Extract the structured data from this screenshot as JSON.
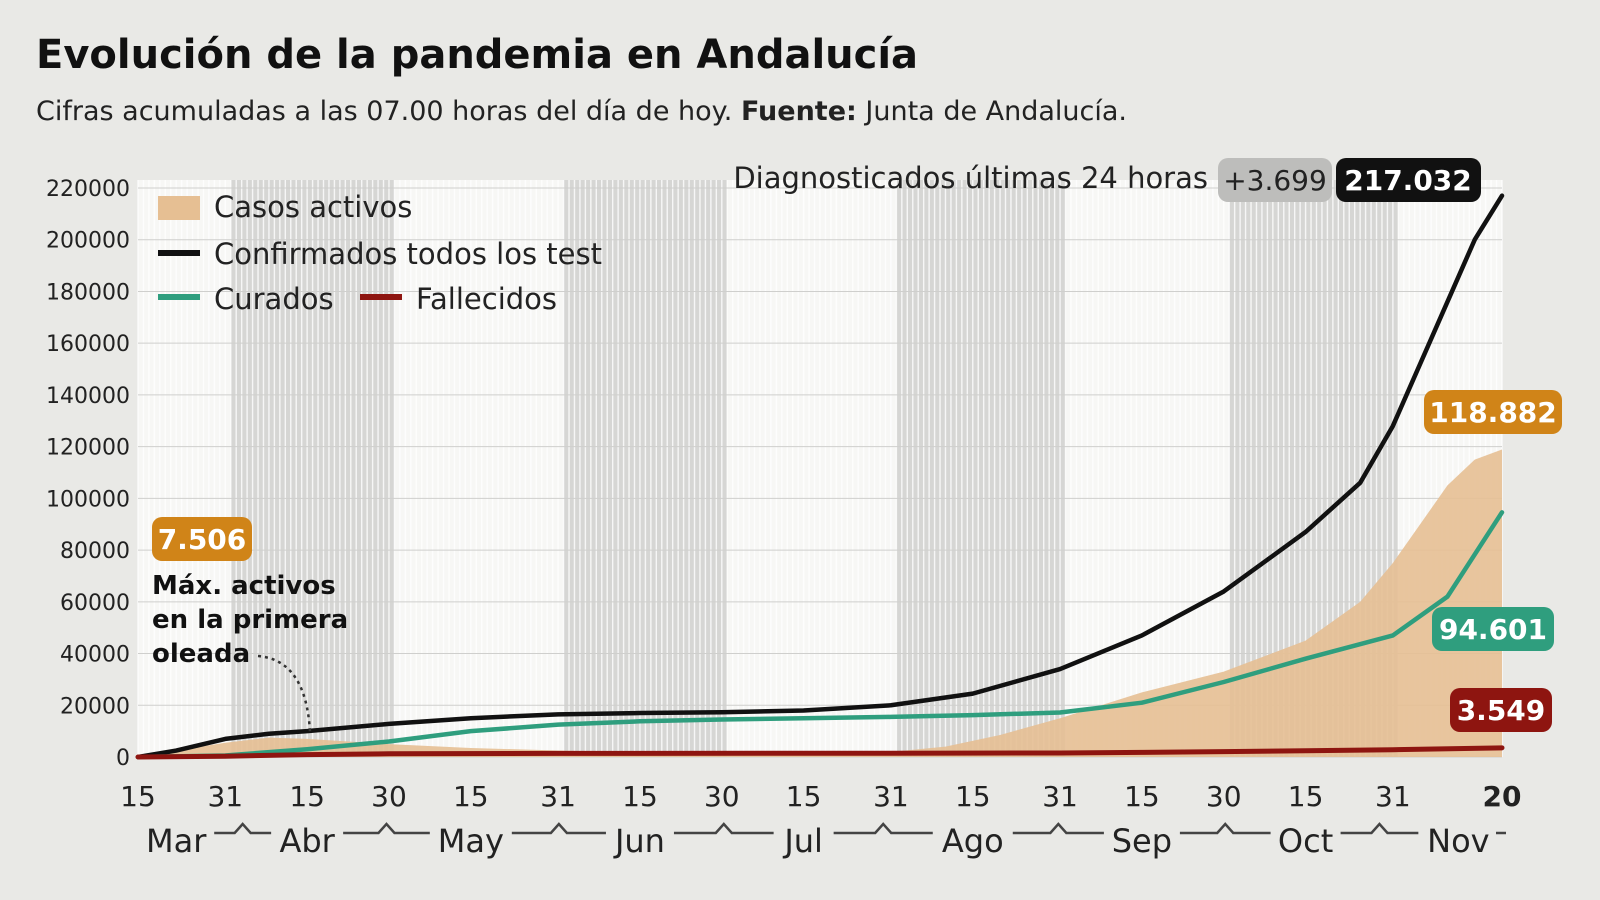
{
  "header": {
    "title": "Evolución de la pandemia en Andalucía",
    "subtitle_text": "Cifras acumuladas a las 07.00 horas del día de hoy. ",
    "subtitle_source_label": "Fuente:",
    "subtitle_source": " Junta de Andalucía."
  },
  "colors": {
    "background": "#e9e9e6",
    "casos_activos": "#e6bf93",
    "confirmados": "#111111",
    "curados": "#2f9e7e",
    "fallecidos": "#8e1510",
    "tag_activos": "#d08418",
    "tag_diag": "#bdbdbb",
    "band": "#d6d6d4"
  },
  "chart_data": {
    "type": "area+line",
    "x_unit": "date (month-day)",
    "xlim": [
      "03-15",
      "11-20"
    ],
    "ylim": [
      0,
      220000
    ],
    "y_ticks": [
      "0",
      "20000",
      "40000",
      "60000",
      "80000",
      "100000",
      "120000",
      "140000",
      "160000",
      "180000",
      "200000",
      "220000"
    ],
    "x_ticks": [
      {
        "date": "03-15",
        "label": "15"
      },
      {
        "date": "03-31",
        "label": "31"
      },
      {
        "date": "04-15",
        "label": "15"
      },
      {
        "date": "04-30",
        "label": "30"
      },
      {
        "date": "05-15",
        "label": "15"
      },
      {
        "date": "05-31",
        "label": "31"
      },
      {
        "date": "06-15",
        "label": "15"
      },
      {
        "date": "06-30",
        "label": "30"
      },
      {
        "date": "07-15",
        "label": "15"
      },
      {
        "date": "07-31",
        "label": "31"
      },
      {
        "date": "08-15",
        "label": "15"
      },
      {
        "date": "08-31",
        "label": "31"
      },
      {
        "date": "09-15",
        "label": "15"
      },
      {
        "date": "09-30",
        "label": "30"
      },
      {
        "date": "10-15",
        "label": "15"
      },
      {
        "date": "10-31",
        "label": "31"
      },
      {
        "date": "11-20",
        "label": "20"
      }
    ],
    "months": [
      "Mar",
      "Abr",
      "May",
      "Jun",
      "Jul",
      "Ago",
      "Sep",
      "Oct",
      "Nov"
    ],
    "shaded_months": [
      "Abr",
      "Jun",
      "Ago",
      "Oct"
    ],
    "grid": "daily vertical lines",
    "legend_position": "top-left",
    "series": [
      {
        "name": "Casos activos",
        "type": "area",
        "points": [
          [
            "03-15",
            0
          ],
          [
            "03-22",
            2500
          ],
          [
            "03-31",
            5500
          ],
          [
            "04-08",
            7506
          ],
          [
            "04-15",
            7000
          ],
          [
            "04-30",
            5000
          ],
          [
            "05-15",
            3500
          ],
          [
            "05-31",
            2500
          ],
          [
            "06-15",
            1800
          ],
          [
            "06-30",
            1500
          ],
          [
            "07-15",
            1500
          ],
          [
            "07-31",
            2000
          ],
          [
            "08-10",
            4000
          ],
          [
            "08-20",
            8500
          ],
          [
            "08-31",
            15000
          ],
          [
            "09-15",
            25000
          ],
          [
            "09-30",
            33000
          ],
          [
            "10-15",
            45000
          ],
          [
            "10-25",
            60000
          ],
          [
            "10-31",
            75000
          ],
          [
            "11-05",
            90000
          ],
          [
            "11-10",
            105000
          ],
          [
            "11-15",
            115000
          ],
          [
            "11-20",
            118882
          ]
        ]
      },
      {
        "name": "Confirmados todos los test",
        "type": "line",
        "points": [
          [
            "03-15",
            0
          ],
          [
            "03-22",
            2500
          ],
          [
            "03-31",
            7000
          ],
          [
            "04-08",
            9000
          ],
          [
            "04-15",
            10000
          ],
          [
            "04-30",
            12800
          ],
          [
            "05-15",
            15000
          ],
          [
            "05-31",
            16500
          ],
          [
            "06-15",
            17000
          ],
          [
            "06-30",
            17300
          ],
          [
            "07-15",
            18000
          ],
          [
            "07-31",
            20000
          ],
          [
            "08-15",
            24500
          ],
          [
            "08-31",
            34000
          ],
          [
            "09-15",
            47000
          ],
          [
            "09-30",
            64000
          ],
          [
            "10-15",
            87000
          ],
          [
            "10-25",
            106000
          ],
          [
            "10-31",
            128000
          ],
          [
            "11-05",
            152000
          ],
          [
            "11-10",
            176000
          ],
          [
            "11-15",
            200000
          ],
          [
            "11-20",
            217032
          ]
        ]
      },
      {
        "name": "Curados",
        "type": "line",
        "points": [
          [
            "03-15",
            0
          ],
          [
            "03-31",
            600
          ],
          [
            "04-15",
            3000
          ],
          [
            "04-30",
            6000
          ],
          [
            "05-15",
            10000
          ],
          [
            "05-31",
            12500
          ],
          [
            "06-15",
            13800
          ],
          [
            "06-30",
            14500
          ],
          [
            "07-15",
            15000
          ],
          [
            "07-31",
            15500
          ],
          [
            "08-15",
            16200
          ],
          [
            "08-31",
            17200
          ],
          [
            "09-15",
            21000
          ],
          [
            "09-30",
            29000
          ],
          [
            "10-15",
            38000
          ],
          [
            "10-31",
            47000
          ],
          [
            "11-10",
            62000
          ],
          [
            "11-20",
            94601
          ]
        ]
      },
      {
        "name": "Fallecidos",
        "type": "line",
        "points": [
          [
            "03-15",
            0
          ],
          [
            "03-31",
            300
          ],
          [
            "04-15",
            900
          ],
          [
            "04-30",
            1250
          ],
          [
            "05-31",
            1400
          ],
          [
            "07-31",
            1450
          ],
          [
            "08-31",
            1550
          ],
          [
            "09-15",
            1800
          ],
          [
            "09-30",
            2100
          ],
          [
            "10-15",
            2400
          ],
          [
            "10-31",
            2800
          ],
          [
            "11-20",
            3549
          ]
        ]
      }
    ],
    "legend": [
      "Casos activos",
      "Confirmados todos los test",
      "Curados",
      "Fallecidos"
    ],
    "annotations": {
      "diag_label": "Diagnosticados últimas 24 horas",
      "diag_delta": "+3.699",
      "confirmados_total": "217.032",
      "activos_total": "118.882",
      "curados_total": "94.601",
      "fallecidos_total": "3.549",
      "max_activos_value": "7.506",
      "max_activos_line1": "Máx. activos",
      "max_activos_line2": "en la primera",
      "max_activos_line3": "oleada"
    }
  }
}
